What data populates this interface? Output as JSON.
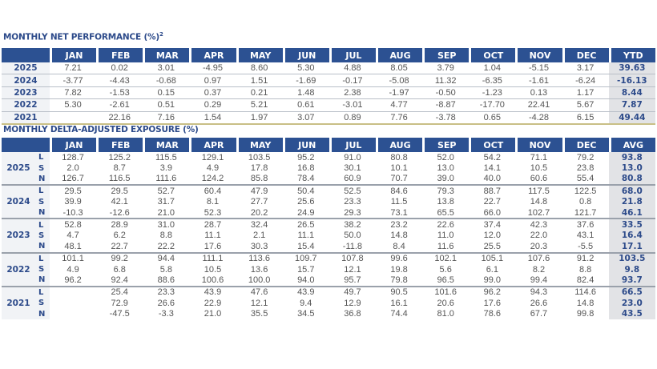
{
  "performance": {
    "title": "MONTHLY NET PERFORMANCE (%)",
    "title_sup": "2",
    "columns": [
      "JAN",
      "FEB",
      "MAR",
      "APR",
      "MAY",
      "JUN",
      "JUL",
      "AUG",
      "SEP",
      "OCT",
      "NOV",
      "DEC",
      "YTD"
    ],
    "rows": [
      {
        "year": "2025",
        "values": [
          "7.21",
          "0.02",
          "3.01",
          "-4.95",
          "8.60",
          "5.30",
          "4.88",
          "8.05",
          "3.79",
          "1.04",
          "-5.15",
          "3.17"
        ],
        "total": "39.63"
      },
      {
        "year": "2024",
        "values": [
          "-3.77",
          "-4.43",
          "-0.68",
          "0.97",
          "1.51",
          "-1.69",
          "-0.17",
          "-5.08",
          "11.32",
          "-6.35",
          "-1.61",
          "-6.24"
        ],
        "total": "-16.13"
      },
      {
        "year": "2023",
        "values": [
          "7.82",
          "-1.53",
          "0.15",
          "0.37",
          "0.21",
          "1.48",
          "2.38",
          "-1.97",
          "-0.50",
          "-1.23",
          "0.13",
          "1.17"
        ],
        "total": "8.44"
      },
      {
        "year": "2022",
        "values": [
          "5.30",
          "-2.61",
          "0.51",
          "0.29",
          "5.21",
          "0.61",
          "-3.01",
          "4.77",
          "-8.87",
          "-17.70",
          "22.41",
          "5.67"
        ],
        "total": "7.87"
      },
      {
        "year": "2021",
        "values": [
          "",
          "22.16",
          "7.16",
          "1.54",
          "1.97",
          "3.07",
          "0.89",
          "7.76",
          "-3.78",
          "0.65",
          "-4.28",
          "6.15"
        ],
        "total": "49.44"
      }
    ]
  },
  "exposure": {
    "title": "MONTHLY DELTA-ADJUSTED EXPOSURE (%)",
    "columns": [
      "JAN",
      "FEB",
      "MAR",
      "APR",
      "MAY",
      "JUN",
      "JUL",
      "AUG",
      "SEP",
      "OCT",
      "NOV",
      "DEC",
      "AVG"
    ],
    "groups": [
      {
        "year": "2025",
        "rows": [
          {
            "label": "L",
            "values": [
              "128.7",
              "125.2",
              "115.5",
              "129.1",
              "103.5",
              "95.2",
              "91.0",
              "80.8",
              "52.0",
              "54.2",
              "71.1",
              "79.2"
            ],
            "total": "93.8"
          },
          {
            "label": "S",
            "values": [
              "2.0",
              "8.7",
              "3.9",
              "4.9",
              "17.8",
              "16.8",
              "30.1",
              "10.1",
              "13.0",
              "14.1",
              "10.5",
              "23.8"
            ],
            "total": "13.0"
          },
          {
            "label": "N",
            "values": [
              "126.7",
              "116.5",
              "111.6",
              "124.2",
              "85.8",
              "78.4",
              "60.9",
              "70.7",
              "39.0",
              "40.0",
              "60.6",
              "55.4"
            ],
            "total": "80.8"
          }
        ]
      },
      {
        "year": "2024",
        "rows": [
          {
            "label": "L",
            "values": [
              "29.5",
              "29.5",
              "52.7",
              "60.4",
              "47.9",
              "50.4",
              "52.5",
              "84.6",
              "79.3",
              "88.7",
              "117.5",
              "122.5"
            ],
            "total": "68.0"
          },
          {
            "label": "S",
            "values": [
              "39.9",
              "42.1",
              "31.7",
              "8.1",
              "27.7",
              "25.6",
              "23.3",
              "11.5",
              "13.8",
              "22.7",
              "14.8",
              "0.8"
            ],
            "total": "21.8"
          },
          {
            "label": "N",
            "values": [
              "-10.3",
              "-12.6",
              "21.0",
              "52.3",
              "20.2",
              "24.9",
              "29.3",
              "73.1",
              "65.5",
              "66.0",
              "102.7",
              "121.7"
            ],
            "total": "46.1"
          }
        ]
      },
      {
        "year": "2023",
        "rows": [
          {
            "label": "L",
            "values": [
              "52.8",
              "28.9",
              "31.0",
              "28.7",
              "32.4",
              "26.5",
              "38.2",
              "23.2",
              "22.6",
              "37.4",
              "42.3",
              "37.6"
            ],
            "total": "33.5"
          },
          {
            "label": "S",
            "values": [
              "4.7",
              "6.2",
              "8.8",
              "11.1",
              "2.1",
              "11.1",
              "50.0",
              "14.8",
              "11.0",
              "12.0",
              "22.0",
              "43.1"
            ],
            "total": "16.4"
          },
          {
            "label": "N",
            "values": [
              "48.1",
              "22.7",
              "22.2",
              "17.6",
              "30.3",
              "15.4",
              "-11.8",
              "8.4",
              "11.6",
              "25.5",
              "20.3",
              "-5.5"
            ],
            "total": "17.1"
          }
        ]
      },
      {
        "year": "2022",
        "rows": [
          {
            "label": "L",
            "values": [
              "101.1",
              "99.2",
              "94.4",
              "111.1",
              "113.6",
              "109.7",
              "107.8",
              "99.6",
              "102.1",
              "105.1",
              "107.6",
              "91.2"
            ],
            "total": "103.5"
          },
          {
            "label": "S",
            "values": [
              "4.9",
              "6.8",
              "5.8",
              "10.5",
              "13.6",
              "15.7",
              "12.1",
              "19.8",
              "5.6",
              "6.1",
              "8.2",
              "8.8"
            ],
            "total": "9.8"
          },
          {
            "label": "N",
            "values": [
              "96.2",
              "92.4",
              "88.6",
              "100.6",
              "100.0",
              "94.0",
              "95.7",
              "79.8",
              "96.5",
              "99.0",
              "99.4",
              "82.4"
            ],
            "total": "93.7"
          }
        ]
      },
      {
        "year": "2021",
        "rows": [
          {
            "label": "L",
            "values": [
              "",
              "25.4",
              "23.3",
              "43.9",
              "47.6",
              "43.9",
              "49.7",
              "90.5",
              "101.6",
              "96.2",
              "94.3",
              "114.6"
            ],
            "total": "66.5"
          },
          {
            "label": "S",
            "values": [
              "",
              "72.9",
              "26.6",
              "22.9",
              "12.1",
              "9.4",
              "12.9",
              "16.1",
              "20.6",
              "17.6",
              "26.6",
              "14.8"
            ],
            "total": "23.0"
          },
          {
            "label": "N",
            "values": [
              "",
              "-47.5",
              "-3.3",
              "21.0",
              "35.5",
              "34.5",
              "36.8",
              "74.4",
              "81.0",
              "78.6",
              "67.7",
              "99.8"
            ],
            "total": "43.5"
          }
        ]
      }
    ]
  }
}
